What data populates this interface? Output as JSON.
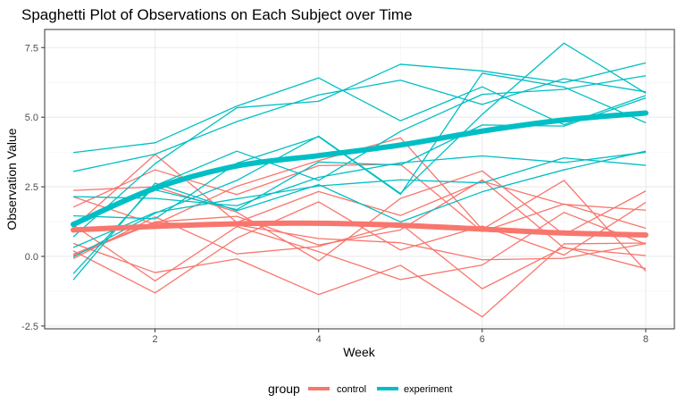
{
  "chart_data": {
    "type": "line",
    "title": "Spaghetti Plot of Observations on Each Subject over Time",
    "xlabel": "Week",
    "ylabel": "Observation Value",
    "xlim": [
      0.65,
      8.35
    ],
    "ylim": [
      -2.6,
      8.15
    ],
    "x_ticks": [
      2,
      4,
      6,
      8
    ],
    "y_ticks": [
      -2.5,
      0.0,
      2.5,
      5.0,
      7.5
    ],
    "y_tick_labels": [
      "-2.5",
      "0.0",
      "2.5",
      "5.0",
      "7.5"
    ],
    "grid": true,
    "legend": {
      "title": "group",
      "position": "bottom",
      "entries": [
        {
          "name": "control",
          "color": "#F8766D"
        },
        {
          "name": "experiment",
          "color": "#00BFC4"
        }
      ]
    },
    "x": [
      1,
      2,
      3,
      4,
      5,
      6,
      7,
      8
    ],
    "series": [
      {
        "group": "control",
        "name": "con_01",
        "values": [
          0.2,
          -1.31,
          0.66,
          1.96,
          0.23,
          1.09,
          0.05,
          1.94
        ]
      },
      {
        "group": "control",
        "name": "con_02",
        "values": [
          1.13,
          -0.88,
          1.07,
          0.17,
          -0.83,
          -0.31,
          1.58,
          0.44
        ]
      },
      {
        "group": "control",
        "name": "con_03",
        "values": [
          1.77,
          3.11,
          2.22,
          3.26,
          3.31,
          0.89,
          1.88,
          1.01
        ]
      },
      {
        "group": "control",
        "name": "con_04",
        "values": [
          1.04,
          3.66,
          1.22,
          2.33,
          1.47,
          2.7,
          1.87,
          1.66
        ]
      },
      {
        "group": "control",
        "name": "con_05",
        "values": [
          0.47,
          -0.58,
          -0.09,
          -1.37,
          -0.32,
          -2.17,
          0.45,
          0.48
        ]
      },
      {
        "group": "control",
        "name": "con_06",
        "values": [
          2.37,
          2.5,
          1.59,
          -0.16,
          2.08,
          3.07,
          0.78,
          2.35
        ]
      },
      {
        "group": "control",
        "name": "con_07",
        "values": [
          0.03,
          1.21,
          1.13,
          0.64,
          0.49,
          -0.12,
          -0.07,
          0.46
        ]
      },
      {
        "group": "control",
        "name": "con_08",
        "values": [
          -0.08,
          1.42,
          0.09,
          0.36,
          1.18,
          -1.16,
          0.33,
          -0.44
        ]
      },
      {
        "group": "control",
        "name": "con_09",
        "values": [
          0.08,
          1.24,
          1.44,
          0.41,
          0.95,
          2.75,
          0.3,
          0.03
        ]
      },
      {
        "group": "control",
        "name": "con_10",
        "values": [
          2.14,
          1.15,
          2.52,
          3.44,
          4.26,
          0.97,
          2.73,
          -0.53
        ]
      },
      {
        "group": "experiment",
        "name": "exp_01",
        "values": [
          3.05,
          3.67,
          4.84,
          5.8,
          6.33,
          5.46,
          6.38,
          5.91
        ]
      },
      {
        "group": "experiment",
        "name": "exp_02",
        "values": [
          -0.84,
          2.63,
          1.64,
          2.58,
          1.24,
          2.32,
          3.11,
          3.78
        ]
      },
      {
        "group": "experiment",
        "name": "exp_03",
        "values": [
          2.15,
          2.08,
          1.82,
          2.84,
          3.36,
          3.61,
          3.37,
          3.74
        ]
      },
      {
        "group": "experiment",
        "name": "exp_04",
        "values": [
          -0.62,
          2.54,
          3.78,
          2.73,
          4.49,
          5.82,
          6.0,
          6.49
        ]
      },
      {
        "group": "experiment",
        "name": "exp_05",
        "values": [
          0.7,
          3.33,
          5.34,
          5.57,
          6.9,
          6.66,
          6.24,
          6.95
        ]
      },
      {
        "group": "experiment",
        "name": "exp_06",
        "values": [
          3.73,
          4.08,
          5.4,
          6.41,
          4.87,
          6.09,
          4.73,
          5.78
        ]
      },
      {
        "group": "experiment",
        "name": "exp_07",
        "values": [
          0.32,
          1.58,
          2.07,
          2.53,
          2.75,
          2.64,
          3.54,
          3.27
        ]
      },
      {
        "group": "experiment",
        "name": "exp_08",
        "values": [
          1.46,
          1.35,
          3.35,
          4.3,
          2.23,
          6.58,
          6.08,
          4.8
        ]
      },
      {
        "group": "experiment",
        "name": "exp_09",
        "values": [
          -0.02,
          1.55,
          2.73,
          4.32,
          2.26,
          5.1,
          7.66,
          5.86
        ]
      },
      {
        "group": "experiment",
        "name": "exp_10",
        "values": [
          1.13,
          2.39,
          1.68,
          3.39,
          3.28,
          4.72,
          4.68,
          5.69
        ]
      }
    ],
    "smooth": [
      {
        "group": "control",
        "values": [
          0.95,
          1.08,
          1.17,
          1.19,
          1.12,
          0.98,
          0.84,
          0.77
        ]
      },
      {
        "group": "experiment",
        "values": [
          1.15,
          2.45,
          3.25,
          3.62,
          4.0,
          4.5,
          4.9,
          5.15
        ]
      }
    ]
  }
}
